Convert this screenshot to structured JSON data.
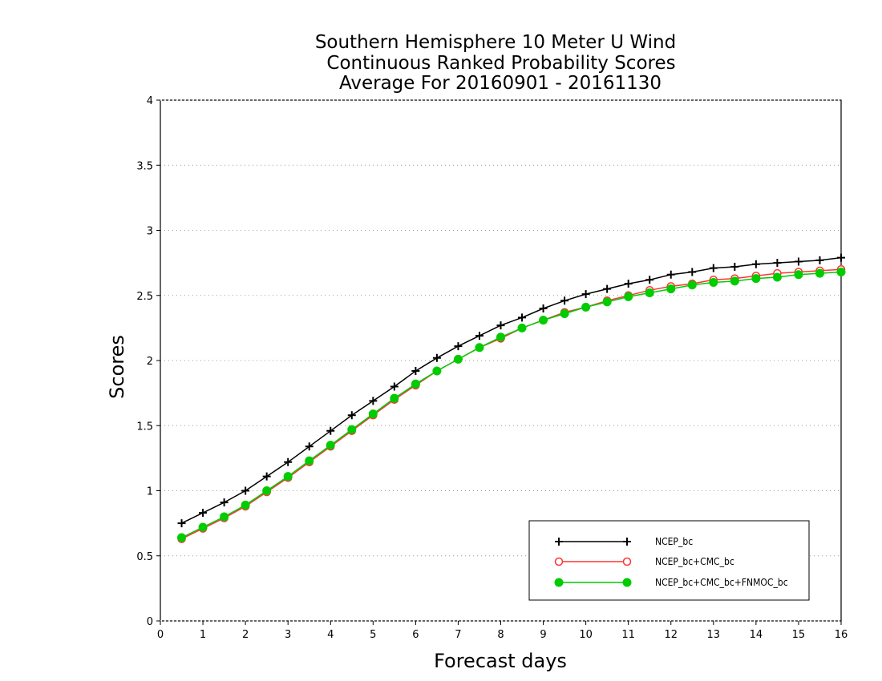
{
  "chart_data": {
    "type": "line",
    "title_lines": [
      "Southern Hemisphere 10 Meter U Wind",
      "Continuous Ranked Probability Scores",
      "Average For 20160901 - 20161130"
    ],
    "xlabel": "Forecast days",
    "ylabel": "Scores",
    "xlim": [
      0,
      16
    ],
    "ylim": [
      0,
      4
    ],
    "x_ticks": [
      "0",
      "1",
      "2",
      "3",
      "4",
      "5",
      "6",
      "7",
      "8",
      "9",
      "10",
      "11",
      "12",
      "13",
      "14",
      "15",
      "16"
    ],
    "y_ticks": [
      "0",
      "0.5",
      "1",
      "1.5",
      "2",
      "2.5",
      "3",
      "3.5",
      "4"
    ],
    "grid": "horizontal dotted",
    "legend_position": "lower-right",
    "x": [
      0.5,
      1,
      1.5,
      2,
      2.5,
      3,
      3.5,
      4,
      4.5,
      5,
      5.5,
      6,
      6.5,
      7,
      7.5,
      8,
      8.5,
      9,
      9.5,
      10,
      10.5,
      11,
      11.5,
      12,
      12.5,
      13,
      13.5,
      14,
      14.5,
      15,
      15.5,
      16
    ],
    "series": [
      {
        "name": "NCEP_bc",
        "color": "#000000",
        "marker": "plus",
        "values": [
          0.75,
          0.83,
          0.91,
          1.0,
          1.11,
          1.22,
          1.34,
          1.46,
          1.58,
          1.69,
          1.8,
          1.92,
          2.02,
          2.11,
          2.19,
          2.27,
          2.33,
          2.4,
          2.46,
          2.51,
          2.55,
          2.59,
          2.62,
          2.66,
          2.68,
          2.71,
          2.72,
          2.74,
          2.75,
          2.76,
          2.77,
          2.79
        ]
      },
      {
        "name": "NCEP_bc+CMC_bc",
        "color": "#ff3333",
        "marker": "open-circle",
        "values": [
          0.63,
          0.71,
          0.79,
          0.88,
          0.99,
          1.1,
          1.22,
          1.34,
          1.46,
          1.58,
          1.7,
          1.81,
          1.92,
          2.01,
          2.1,
          2.17,
          2.25,
          2.31,
          2.37,
          2.41,
          2.46,
          2.5,
          2.54,
          2.57,
          2.59,
          2.62,
          2.63,
          2.65,
          2.67,
          2.68,
          2.69,
          2.7
        ]
      },
      {
        "name": "NCEP_bc+CMC_bc+FNMOC_bc",
        "color": "#00cc00",
        "marker": "filled-circle",
        "values": [
          0.64,
          0.72,
          0.8,
          0.89,
          1.0,
          1.11,
          1.23,
          1.35,
          1.47,
          1.59,
          1.71,
          1.82,
          1.92,
          2.01,
          2.1,
          2.18,
          2.25,
          2.31,
          2.36,
          2.41,
          2.45,
          2.49,
          2.52,
          2.55,
          2.58,
          2.6,
          2.61,
          2.63,
          2.64,
          2.66,
          2.67,
          2.68
        ]
      }
    ]
  }
}
